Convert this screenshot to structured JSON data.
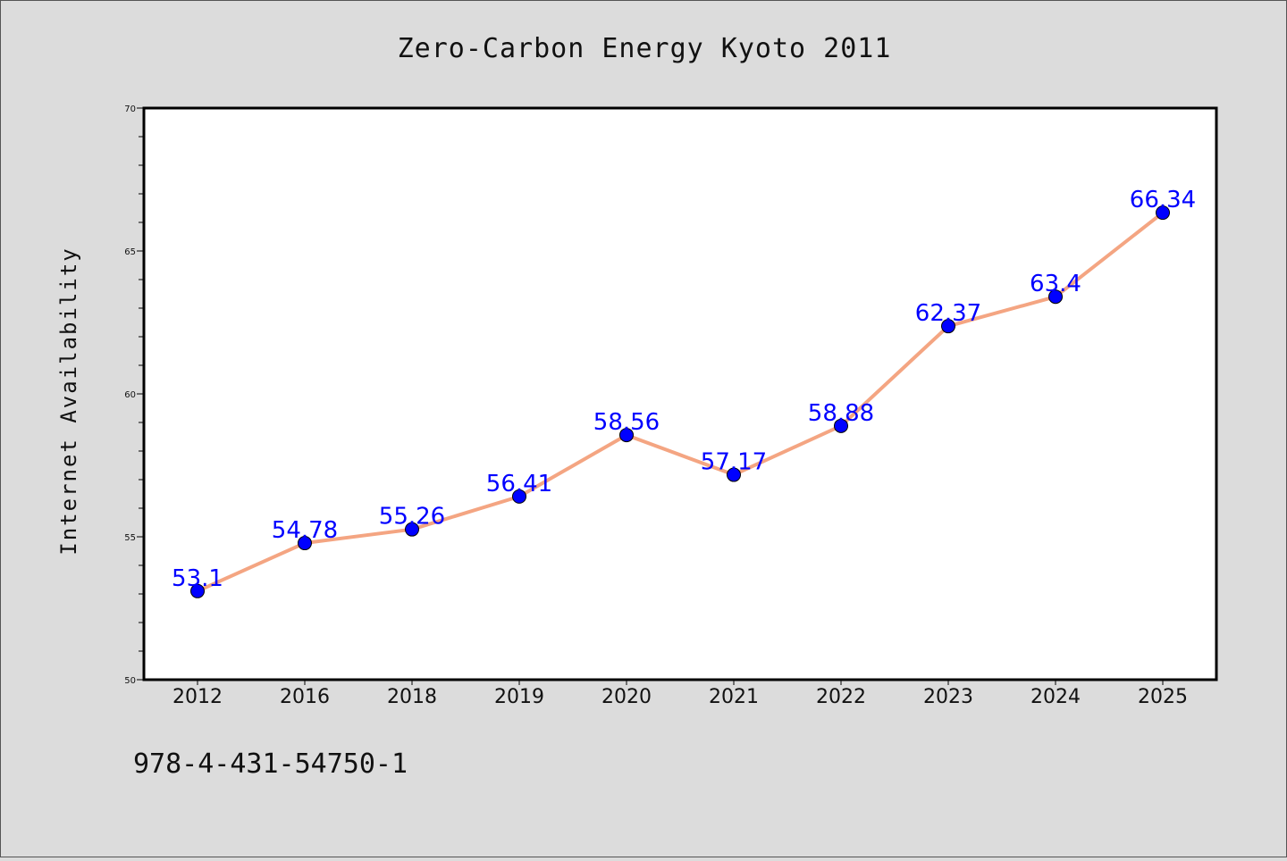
{
  "chart_data": {
    "type": "line",
    "title": "Zero-Carbon Energy Kyoto 2011",
    "ylabel": "Internet Availability",
    "xlabel": "",
    "categories": [
      "2012",
      "2016",
      "2018",
      "2019",
      "2020",
      "2021",
      "2022",
      "2023",
      "2024",
      "2025"
    ],
    "series": [
      {
        "values": [
          53.1,
          54.78,
          55.26,
          56.41,
          58.56,
          57.17,
          58.88,
          62.37,
          63.4,
          66.34
        ],
        "data_labels": [
          "53.1",
          "54.78",
          "55.26",
          "56.41",
          "58.56",
          "57.17",
          "58.88",
          "62.37",
          "63.4",
          "66.34"
        ],
        "line_color": "#f4a582",
        "marker_color": "#0000ff"
      }
    ],
    "ylim": [
      50,
      70
    ],
    "yticks": [
      "50",
      "55",
      "60",
      "65",
      "70"
    ],
    "grid": false,
    "legend": "none"
  },
  "footer": {
    "isbn": "978-4-431-54750-1"
  },
  "colors": {
    "background": "#dcdcdc",
    "plot_background": "#ffffff",
    "data_label": "#0000ff"
  }
}
